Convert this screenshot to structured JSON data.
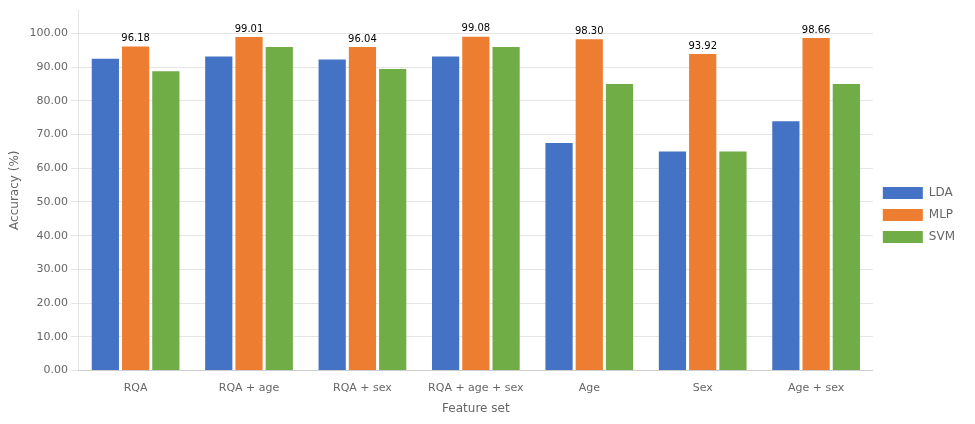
{
  "chart_data": {
    "type": "bar",
    "xlabel": "Feature set",
    "ylabel": "Accuracy (%)",
    "categories": [
      "RQA",
      "RQA + age",
      "RQA + sex",
      "RQA + age + sex",
      "Age",
      "Sex",
      "Age + sex"
    ],
    "series": [
      {
        "name": "LDA",
        "color": "#4472C4",
        "values": [
          92.5,
          93.2,
          92.3,
          93.2,
          67.5,
          65.0,
          74.0
        ]
      },
      {
        "name": "MLP",
        "color": "#ED7D31",
        "values": [
          96.18,
          99.01,
          96.04,
          99.08,
          98.3,
          93.92,
          98.66
        ],
        "data_labels": true,
        "value_labels": [
          "96.18",
          "99.01",
          "96.04",
          "99.08",
          "98.30",
          "93.92",
          "98.66"
        ]
      },
      {
        "name": "SVM",
        "color": "#70AD47",
        "values": [
          88.8,
          96.0,
          89.5,
          96.0,
          85.0,
          65.0,
          85.0
        ]
      }
    ],
    "ylim": [
      0,
      107
    ],
    "yticks": [
      {
        "value": 0,
        "label": "0.00"
      },
      {
        "value": 10,
        "label": "10.00"
      },
      {
        "value": 20,
        "label": "20.00"
      },
      {
        "value": 30,
        "label": "30.00"
      },
      {
        "value": 40,
        "label": "40.00"
      },
      {
        "value": 50,
        "label": "50.00"
      },
      {
        "value": 60,
        "label": "60.00"
      },
      {
        "value": 70,
        "label": "70.00"
      },
      {
        "value": 80,
        "label": "80.00"
      },
      {
        "value": 90,
        "label": "90.00"
      },
      {
        "value": 100,
        "label": "100.00"
      }
    ],
    "grid": true,
    "legend": "right"
  }
}
